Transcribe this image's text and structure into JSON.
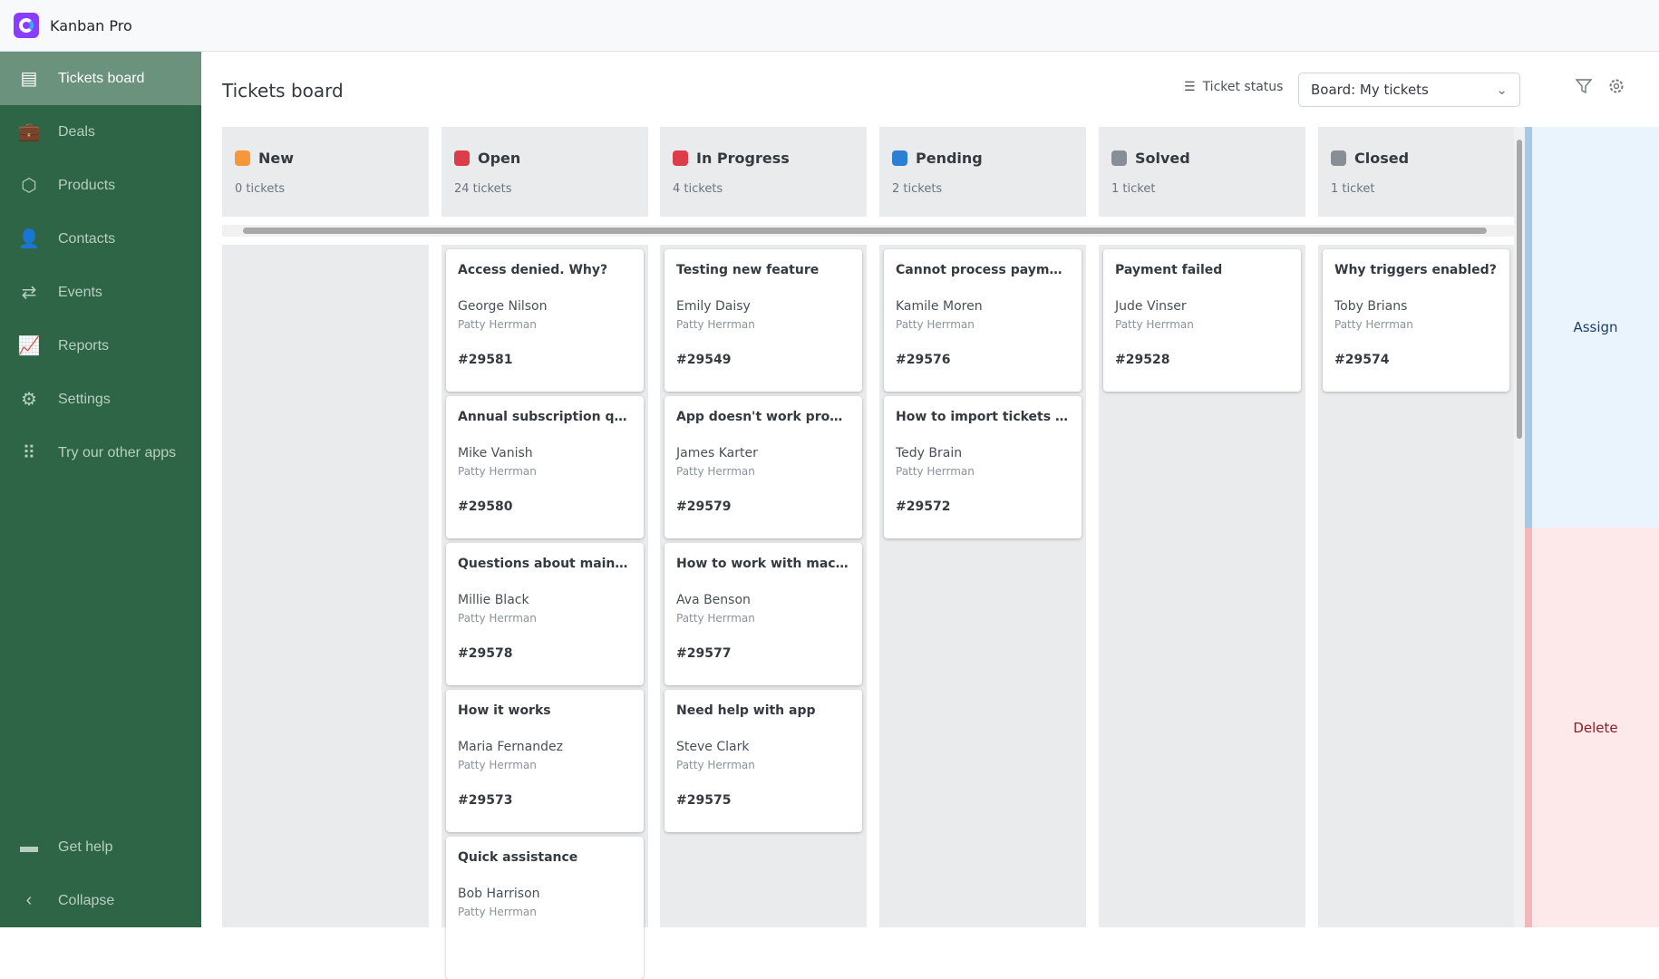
{
  "app": {
    "name": "Kanban Pro"
  },
  "sidebar": {
    "items": [
      {
        "label": "Tickets board",
        "icon": "ticket-icon",
        "active": true
      },
      {
        "label": "Deals",
        "icon": "briefcase-icon"
      },
      {
        "label": "Products",
        "icon": "box-icon"
      },
      {
        "label": "Contacts",
        "icon": "contacts-icon"
      },
      {
        "label": "Events",
        "icon": "arrows-icon"
      },
      {
        "label": "Reports",
        "icon": "chart-icon"
      },
      {
        "label": "Settings",
        "icon": "gear-icon"
      },
      {
        "label": "Try our other apps",
        "icon": "grid-icon"
      }
    ],
    "bottom": [
      {
        "label": "Get help",
        "icon": "chat-icon"
      },
      {
        "label": "Collapse",
        "icon": "chevron-left-icon"
      }
    ]
  },
  "header": {
    "title": "Tickets board",
    "status_label": "Ticket status",
    "board_select": "Board: My tickets"
  },
  "columns": [
    {
      "name": "New",
      "count": "0 tickets",
      "color": "#f5973a",
      "cards": []
    },
    {
      "name": "Open",
      "count": "24 tickets",
      "color": "#dc3d4b",
      "cards": [
        {
          "title": "Access denied. Why?",
          "contact": "George Nilson",
          "agent": "Patty Herrman",
          "id": "#29581"
        },
        {
          "title": "Annual subscription que...",
          "contact": "Mike Vanish",
          "agent": "Patty Herrman",
          "id": "#29580"
        },
        {
          "title": "Questions about main fe...",
          "contact": "Millie Black",
          "agent": "Patty Herrman",
          "id": "#29578"
        },
        {
          "title": "How it works",
          "contact": "Maria Fernandez",
          "agent": "Patty Herrman",
          "id": "#29573"
        },
        {
          "title": "Quick assistance",
          "contact": "Bob Harrison",
          "agent": "Patty Herrman",
          "id": ""
        }
      ]
    },
    {
      "name": "In Progress",
      "count": "4 tickets",
      "color": "#dc3d4b",
      "cards": [
        {
          "title": "Testing new feature",
          "contact": "Emily Daisy",
          "agent": "Patty Herrman",
          "id": "#29549"
        },
        {
          "title": "App doesn't work properly",
          "contact": "James Karter",
          "agent": "Patty Herrman",
          "id": "#29579"
        },
        {
          "title": "How to work with macros",
          "contact": "Ava Benson",
          "agent": "Patty Herrman",
          "id": "#29577"
        },
        {
          "title": "Need help with app",
          "contact": "Steve Clark",
          "agent": "Patty Herrman",
          "id": "#29575"
        }
      ]
    },
    {
      "name": "Pending",
      "count": "2 tickets",
      "color": "#2d7fd3",
      "cards": [
        {
          "title": "Cannot process payment",
          "contact": "Kamile Moren",
          "agent": "Patty Herrman",
          "id": "#29576"
        },
        {
          "title": "How to import tickets fr...",
          "contact": "Tedy Brain",
          "agent": "Patty Herrman",
          "id": "#29572"
        }
      ]
    },
    {
      "name": "Solved",
      "count": "1 ticket",
      "color": "#878e96",
      "cards": [
        {
          "title": "Payment failed",
          "contact": "Jude Vinser",
          "agent": "Patty Herrman",
          "id": "#29528"
        }
      ]
    },
    {
      "name": "Closed",
      "count": "1 ticket",
      "color": "#878e96",
      "cards": [
        {
          "title": "Why triggers enabled?",
          "contact": "Toby Brians",
          "agent": "Patty Herrman",
          "id": "#29574"
        }
      ]
    }
  ],
  "drop_zones": {
    "assign": "Assign",
    "delete": "Delete"
  }
}
